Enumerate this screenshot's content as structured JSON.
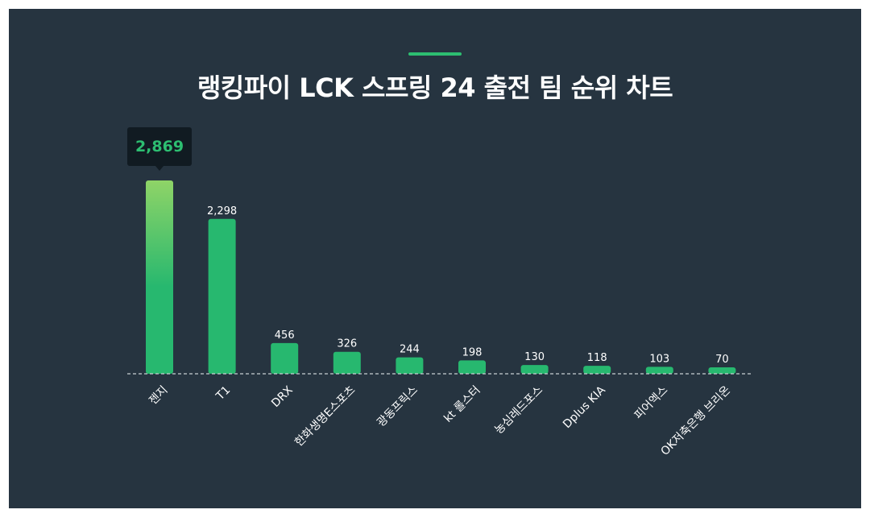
{
  "title": "랭킹파이 LCK 스프링 24 출전 팀 순위 차트",
  "colors": {
    "background": "#263440",
    "bar": "#27b86f",
    "bar_highlight_top": "#8fd467",
    "accent": "#2dbe71",
    "tooltip_bg": "#111b22"
  },
  "tooltip": {
    "label": "2,869"
  },
  "chart_data": {
    "type": "bar",
    "title": "랭킹파이 LCK 스프링 24 출전 팀 순위 차트",
    "categories": [
      "젠지",
      "T1",
      "DRX",
      "한화생명E스포츠",
      "광동프릭스",
      "kt 롤스터",
      "농심레드포스",
      "Dplus KIA",
      "피어엑스",
      "OK저축은행 브리온"
    ],
    "values": [
      2869,
      2298,
      456,
      326,
      244,
      198,
      130,
      118,
      103,
      70
    ],
    "value_labels": [
      "2,869",
      "2,298",
      "456",
      "326",
      "244",
      "198",
      "130",
      "118",
      "103",
      "70"
    ],
    "highlighted_index": 0,
    "xlabel": "",
    "ylabel": "",
    "ylim": [
      0,
      2869
    ],
    "grid": false,
    "baseline": "dashed"
  }
}
